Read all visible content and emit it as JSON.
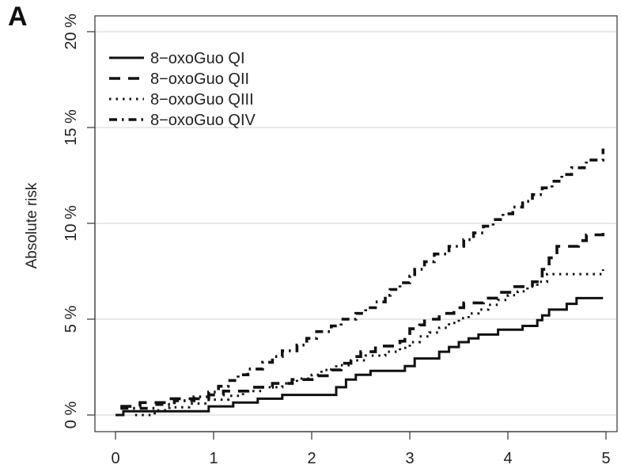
{
  "panel_label": "A",
  "chart_data": {
    "type": "line",
    "step": true,
    "title": "",
    "xlabel": "",
    "ylabel": "Absolute risk",
    "xlim": [
      0,
      5
    ],
    "ylim": [
      0,
      20
    ],
    "x_ticks": [
      0,
      1,
      2,
      3,
      4,
      5
    ],
    "x_tick_labels": [
      "0",
      "1",
      "2",
      "3",
      "4",
      "5"
    ],
    "y_ticks": [
      0,
      5,
      10,
      15,
      20
    ],
    "y_tick_labels": [
      "0 %",
      "5 %",
      "10 %",
      "15 %",
      "20 %"
    ],
    "grid": "horizontal",
    "legend_position": "top-left",
    "series": [
      {
        "name": "8−oxoGuo QI",
        "style": "solid",
        "points": [
          [
            0,
            0.0
          ],
          [
            0.08,
            0.2
          ],
          [
            0.95,
            0.45
          ],
          [
            1.2,
            0.65
          ],
          [
            1.45,
            0.85
          ],
          [
            1.7,
            1.05
          ],
          [
            2.25,
            1.45
          ],
          [
            2.35,
            1.85
          ],
          [
            2.45,
            2.1
          ],
          [
            2.6,
            2.3
          ],
          [
            2.95,
            2.55
          ],
          [
            3.05,
            2.95
          ],
          [
            3.3,
            3.3
          ],
          [
            3.4,
            3.55
          ],
          [
            3.5,
            3.8
          ],
          [
            3.6,
            4.0
          ],
          [
            3.7,
            4.2
          ],
          [
            3.9,
            4.45
          ],
          [
            4.15,
            4.65
          ],
          [
            4.3,
            4.95
          ],
          [
            4.35,
            5.2
          ],
          [
            4.42,
            5.5
          ],
          [
            4.6,
            5.8
          ],
          [
            4.7,
            6.1
          ],
          [
            4.97,
            6.1
          ]
        ]
      },
      {
        "name": "8−oxoGuo QII",
        "style": "longdash",
        "points": [
          [
            0.05,
            0.45
          ],
          [
            0.25,
            0.65
          ],
          [
            0.55,
            0.85
          ],
          [
            0.95,
            1.05
          ],
          [
            1.1,
            1.25
          ],
          [
            1.35,
            1.45
          ],
          [
            1.6,
            1.65
          ],
          [
            1.8,
            1.85
          ],
          [
            2.05,
            2.05
          ],
          [
            2.2,
            2.35
          ],
          [
            2.3,
            2.7
          ],
          [
            2.4,
            3.05
          ],
          [
            2.5,
            3.3
          ],
          [
            2.65,
            3.6
          ],
          [
            2.9,
            3.85
          ],
          [
            2.95,
            4.15
          ],
          [
            3.0,
            4.5
          ],
          [
            3.1,
            4.7
          ],
          [
            3.15,
            5.0
          ],
          [
            3.3,
            5.3
          ],
          [
            3.45,
            5.6
          ],
          [
            3.55,
            5.85
          ],
          [
            3.75,
            6.1
          ],
          [
            3.9,
            6.4
          ],
          [
            4.05,
            6.7
          ],
          [
            4.25,
            6.95
          ],
          [
            4.35,
            7.6
          ],
          [
            4.42,
            8.2
          ],
          [
            4.5,
            8.8
          ],
          [
            4.72,
            9.1
          ],
          [
            4.8,
            9.4
          ],
          [
            4.97,
            9.5
          ]
        ]
      },
      {
        "name": "8−oxoGuo QIII",
        "style": "dotted",
        "points": [
          [
            0.2,
            0.0
          ],
          [
            0.4,
            0.25
          ],
          [
            0.55,
            0.4
          ],
          [
            0.75,
            0.6
          ],
          [
            0.95,
            0.8
          ],
          [
            1.15,
            1.0
          ],
          [
            1.3,
            1.25
          ],
          [
            1.5,
            1.45
          ],
          [
            1.7,
            1.65
          ],
          [
            1.85,
            1.9
          ],
          [
            2.0,
            2.1
          ],
          [
            2.1,
            2.35
          ],
          [
            2.25,
            2.6
          ],
          [
            2.4,
            2.85
          ],
          [
            2.55,
            3.1
          ],
          [
            2.75,
            3.3
          ],
          [
            2.9,
            3.5
          ],
          [
            3.0,
            3.8
          ],
          [
            3.1,
            4.1
          ],
          [
            3.2,
            4.3
          ],
          [
            3.3,
            4.55
          ],
          [
            3.4,
            4.8
          ],
          [
            3.5,
            5.05
          ],
          [
            3.6,
            5.3
          ],
          [
            3.7,
            5.5
          ],
          [
            3.8,
            5.75
          ],
          [
            3.9,
            6.0
          ],
          [
            4.0,
            6.25
          ],
          [
            4.1,
            6.45
          ],
          [
            4.2,
            6.7
          ],
          [
            4.3,
            6.95
          ],
          [
            4.4,
            7.35
          ],
          [
            4.9,
            7.35
          ],
          [
            4.97,
            7.6
          ]
        ]
      },
      {
        "name": "8−oxoGuo QIV",
        "style": "dashdot",
        "points": [
          [
            0.05,
            0.35
          ],
          [
            0.4,
            0.55
          ],
          [
            0.6,
            0.75
          ],
          [
            0.8,
            0.95
          ],
          [
            0.95,
            1.2
          ],
          [
            1.05,
            1.5
          ],
          [
            1.15,
            1.8
          ],
          [
            1.25,
            2.1
          ],
          [
            1.35,
            2.4
          ],
          [
            1.5,
            2.75
          ],
          [
            1.6,
            3.05
          ],
          [
            1.7,
            3.35
          ],
          [
            1.85,
            3.65
          ],
          [
            1.95,
            4.0
          ],
          [
            2.05,
            4.35
          ],
          [
            2.2,
            4.65
          ],
          [
            2.3,
            5.0
          ],
          [
            2.45,
            5.3
          ],
          [
            2.55,
            5.6
          ],
          [
            2.65,
            5.9
          ],
          [
            2.75,
            6.25
          ],
          [
            2.8,
            6.55
          ],
          [
            2.9,
            6.9
          ],
          [
            3.0,
            7.25
          ],
          [
            3.05,
            7.6
          ],
          [
            3.15,
            8.0
          ],
          [
            3.25,
            8.4
          ],
          [
            3.4,
            8.8
          ],
          [
            3.55,
            9.15
          ],
          [
            3.65,
            9.5
          ],
          [
            3.75,
            9.85
          ],
          [
            3.85,
            10.2
          ],
          [
            3.95,
            10.5
          ],
          [
            4.05,
            10.85
          ],
          [
            4.15,
            11.15
          ],
          [
            4.25,
            11.5
          ],
          [
            4.35,
            11.85
          ],
          [
            4.45,
            12.2
          ],
          [
            4.55,
            12.55
          ],
          [
            4.65,
            12.9
          ],
          [
            4.8,
            13.3
          ],
          [
            4.97,
            13.9
          ]
        ]
      }
    ]
  }
}
